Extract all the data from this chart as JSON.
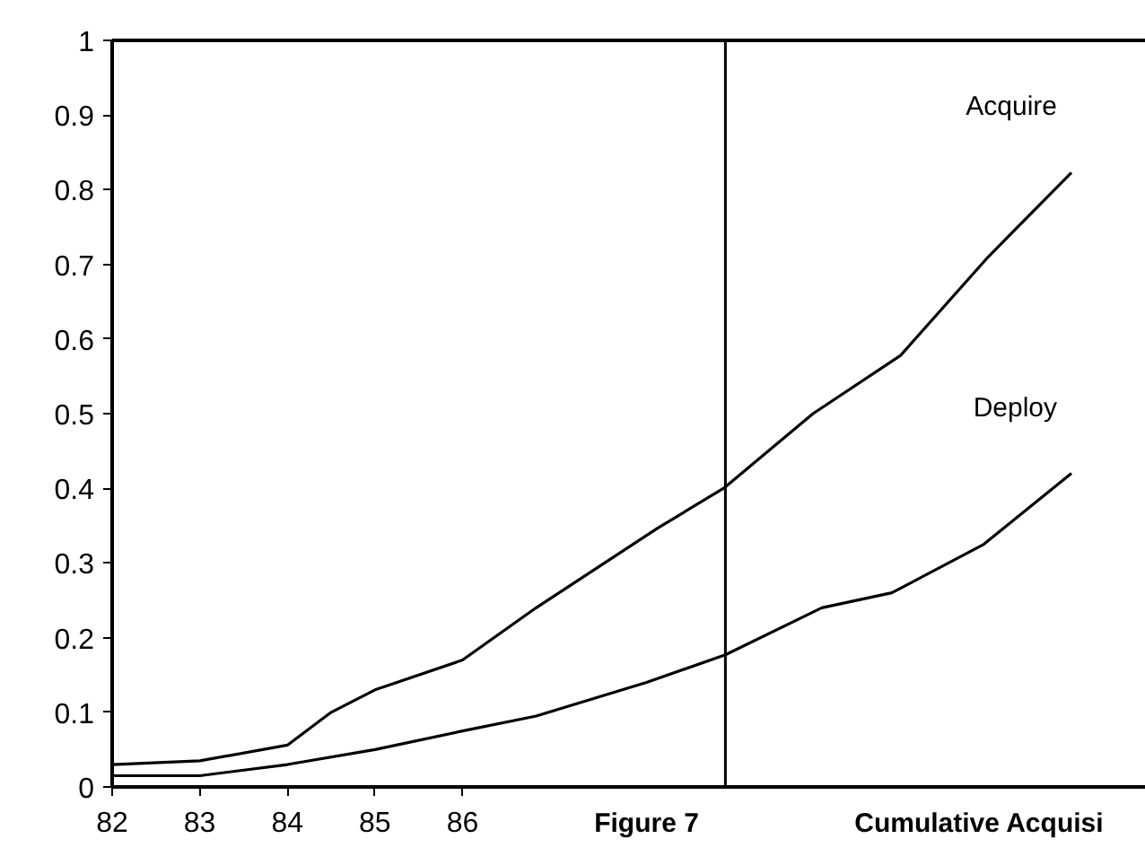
{
  "chart_data": {
    "type": "line",
    "x": [
      82,
      83,
      84,
      84.5,
      85,
      86,
      86.84,
      88.23,
      88.98,
      90.0,
      91.0,
      92.0,
      92.95
    ],
    "series": [
      {
        "name": "Acquire",
        "color": "#000000",
        "values": [
          0.03,
          0.035,
          0.056,
          0.1,
          0.13,
          0.17,
          0.24,
          0.347,
          0.4,
          0.5,
          0.578,
          0.71,
          0.823
        ]
      },
      {
        "name": "Deploy",
        "color": "#000000",
        "x": [
          82,
          83,
          84,
          85,
          86,
          86.84,
          88.1,
          89.0,
          90.1,
          90.9,
          91.95,
          92.95
        ],
        "values": [
          0.015,
          0.015,
          0.03,
          0.05,
          0.075,
          0.095,
          0.14,
          0.177,
          0.24,
          0.26,
          0.325,
          0.42
        ]
      }
    ],
    "xlim": [
      82,
      93.8
    ],
    "xticks": [
      82,
      83,
      84,
      85,
      86
    ],
    "ylim": [
      0,
      1
    ],
    "yticks": [
      0,
      0.1,
      0.2,
      0.3,
      0.4,
      0.5,
      0.6,
      0.7,
      0.8,
      0.9,
      1
    ],
    "ref_lines": [
      {
        "axis": "x",
        "value": 89,
        "color": "#000000"
      }
    ],
    "annotations": [
      "Figure 7",
      "Cumulative Acquisi"
    ],
    "grid": false,
    "marker": "none",
    "line_style": "solid"
  }
}
